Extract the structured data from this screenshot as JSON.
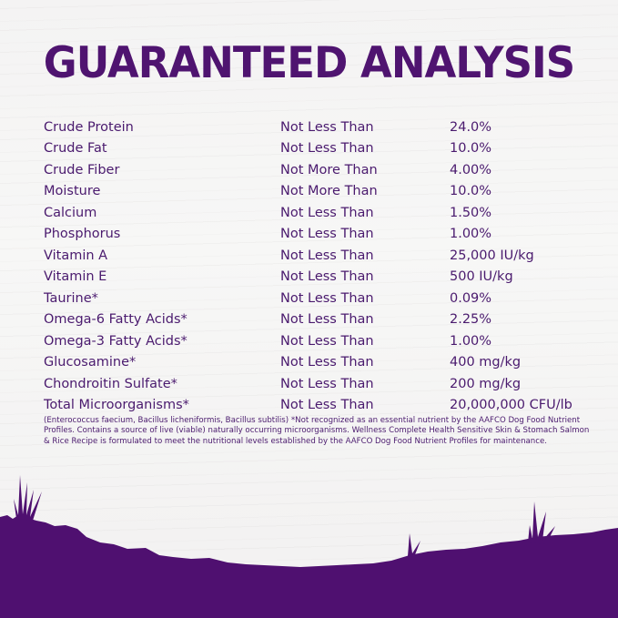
{
  "title": "GUARANTEED ANALYSIS",
  "rows": [
    {
      "nutrient": "Crude Protein",
      "qualifier": "Not Less Than",
      "value": "24.0%"
    },
    {
      "nutrient": "Crude Fat",
      "qualifier": "Not Less Than",
      "value": "10.0%"
    },
    {
      "nutrient": "Crude Fiber",
      "qualifier": "Not More Than",
      "value": "4.00%"
    },
    {
      "nutrient": "Moisture",
      "qualifier": "Not More Than",
      "value": "10.0%"
    },
    {
      "nutrient": "Calcium",
      "qualifier": "Not Less Than",
      "value": "1.50%"
    },
    {
      "nutrient": "Phosphorus",
      "qualifier": "Not Less Than",
      "value": "1.00%"
    },
    {
      "nutrient": "Vitamin A",
      "qualifier": "Not Less Than",
      "value": "25,000 IU/kg"
    },
    {
      "nutrient": "Vitamin E",
      "qualifier": "Not Less Than",
      "value": "500 IU/kg"
    },
    {
      "nutrient": "Taurine*",
      "qualifier": "Not Less Than",
      "value": "0.09%"
    },
    {
      "nutrient": "Omega-6 Fatty Acids*",
      "qualifier": "Not Less Than",
      "value": "2.25%"
    },
    {
      "nutrient": "Omega-3 Fatty Acids*",
      "qualifier": "Not Less Than",
      "value": "1.00%"
    },
    {
      "nutrient": "Glucosamine*",
      "qualifier": "Not Less Than",
      "value": "400 mg/kg"
    },
    {
      "nutrient": "Chondroitin Sulfate*",
      "qualifier": "Not Less Than",
      "value": "200 mg/kg"
    },
    {
      "nutrient": "Total Microorganisms*",
      "qualifier": "Not Less Than",
      "value": "20,000,000 CFU/lb"
    }
  ],
  "footnote": "(Enterococcus faecium, Bacillus licheniformis, Bacillus subtilis) *Not recognized as an essential nutrient by the AAFCO Dog Food Nutrient Profiles. Contains a source of live (viable) naturally occurring microorganisms. Wellness Complete Health Sensitive Skin & Stomach Salmon & Rice Recipe is formulated to meet the nutritional levels established by the AAFCO Dog Food Nutrient Profiles for maintenance.",
  "colors": {
    "brand_purple": "#4f1470",
    "text_purple": "#4a1a6e",
    "background": "#f5f4f4"
  }
}
